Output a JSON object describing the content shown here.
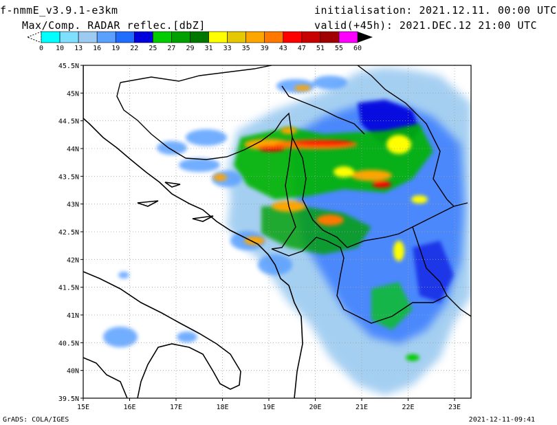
{
  "header": {
    "model": "f-nmmE_v3.9.1-e3km",
    "product": "Max/Comp. RADAR reflec.[dbZ]",
    "init": "initialisation: 2021.12.11. 00:00 UTC",
    "valid": "valid(+45h): 2021.DEC.12 21:00 UTC"
  },
  "color_scale": {
    "unit": "dbZ",
    "labels": [
      "0",
      "10",
      "13",
      "16",
      "19",
      "22",
      "25",
      "27",
      "29",
      "31",
      "33",
      "35",
      "39",
      "43",
      "47",
      "51",
      "55",
      "60"
    ],
    "colors": [
      "#00ffff",
      "#7fdfff",
      "#9ccaf0",
      "#5aa0ff",
      "#1f6dff",
      "#0000dc",
      "#00cc00",
      "#00a000",
      "#007800",
      "#ffff00",
      "#e6c800",
      "#ffa500",
      "#ff7800",
      "#ff0000",
      "#c80000",
      "#a00000",
      "#ff00ff",
      "#9a5fd0"
    ]
  },
  "map": {
    "lat_labels": [
      "45.5N",
      "45N",
      "44.5N",
      "44N",
      "43.5N",
      "43N",
      "42.5N",
      "42N",
      "41.5N",
      "41N",
      "40.5N",
      "40N",
      "39.5N"
    ],
    "lon_labels": [
      "15E",
      "16E",
      "17E",
      "18E",
      "19E",
      "20E",
      "21E",
      "22E",
      "23E"
    ]
  },
  "footer": {
    "credit": "GrADS: COLA/IGES",
    "timestamp": "2021-12-11-09:41"
  }
}
